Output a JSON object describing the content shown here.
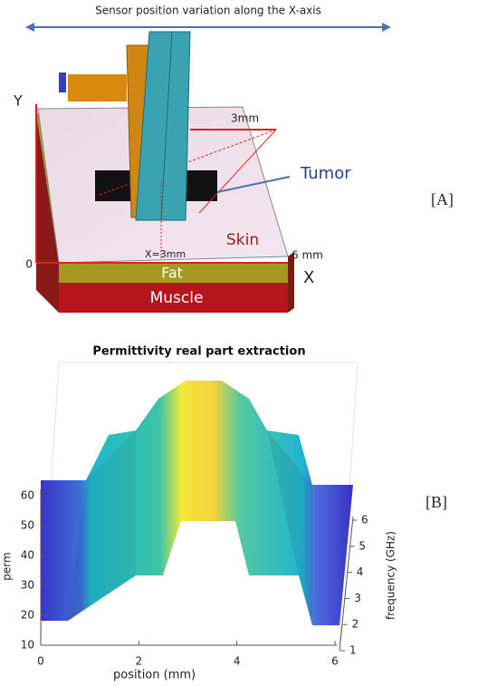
{
  "panel_a": {
    "banner": "Sensor position variation along the X-axis",
    "y_axis": "Y",
    "distance": "3mm",
    "tumor": "Tumor",
    "tag": "[A]",
    "skin": "Skin",
    "x_position": "X=3mm",
    "origin": "0",
    "x_end": "6 mm",
    "x_axis": "X",
    "fat": "Fat",
    "muscle": "Muscle"
  },
  "panel_b": {
    "title": "Permittivity real part extraction",
    "y_label": "perm",
    "yticks": [
      10,
      20,
      30,
      40,
      50,
      60
    ],
    "x_label": "position (mm)",
    "xticks": [
      0,
      2,
      4,
      6
    ],
    "z_label": "frequency (GHz)",
    "zticks": [
      1,
      2,
      3,
      4,
      5,
      6
    ],
    "tag": "[B]"
  }
}
